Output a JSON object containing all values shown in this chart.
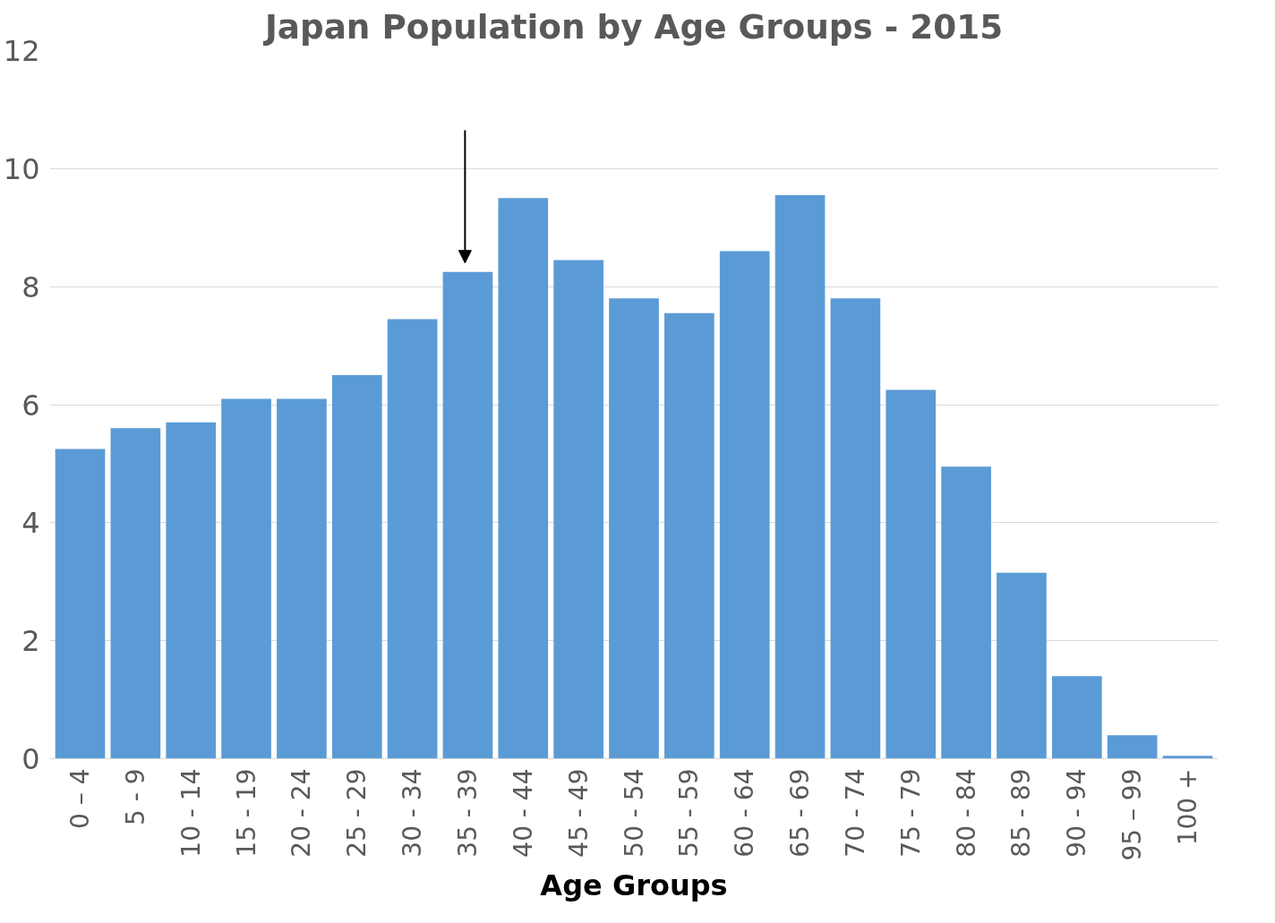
{
  "chart_data": {
    "type": "bar",
    "title": "Japan Population by Age Groups - 2015",
    "xlabel": "Age Groups",
    "categories": [
      "0 – 4",
      "5 - 9",
      "10 - 14",
      "15 - 19",
      "20 - 24",
      "25 - 29",
      "30 - 34",
      "35 - 39",
      "40 - 44",
      "45 - 49",
      "50 - 54",
      "55 - 59",
      "60 - 64",
      "65 - 69",
      "70 - 74",
      "75 - 79",
      "80 - 84",
      "85 - 89",
      "90 - 94",
      "95 – 99",
      "100 +"
    ],
    "values": [
      5.25,
      5.6,
      5.7,
      6.1,
      6.1,
      6.5,
      7.45,
      8.25,
      9.5,
      8.45,
      7.8,
      7.55,
      8.6,
      9.55,
      7.8,
      6.25,
      4.95,
      3.15,
      1.4,
      0.4,
      0.05
    ],
    "color": "#5b9bd5",
    "ylim": [
      0,
      12
    ],
    "yticks": [
      0,
      2,
      4,
      6,
      8,
      10,
      12
    ],
    "grid": "y"
  }
}
